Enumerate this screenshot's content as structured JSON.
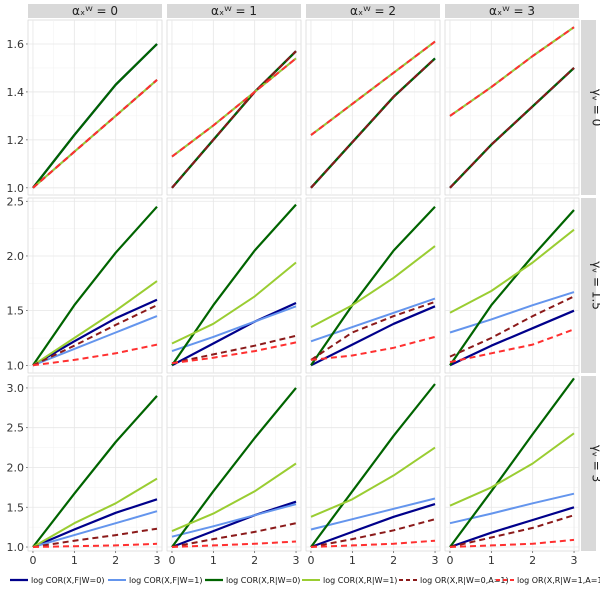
{
  "chart_data": {
    "type": "line",
    "x": [
      0,
      1,
      2,
      3
    ],
    "xticks": [
      "0",
      "1",
      "2",
      "3"
    ],
    "column_labels": [
      "αₓᵂ = 0",
      "αₓᵂ = 1",
      "αₓᵂ = 2",
      "αₓᵂ = 3"
    ],
    "row_labels": [
      "γᵥ = 0",
      "γᵥ = 1.5",
      "γᵥ = 3"
    ],
    "row_yticks": [
      {
        "ylim": [
          0.97,
          1.7
        ],
        "ticks": [
          1.0,
          1.2,
          1.4,
          1.6
        ],
        "labels": [
          "1.0",
          "1.2",
          "1.4",
          "1.6"
        ]
      },
      {
        "ylim": [
          0.93,
          2.53
        ],
        "ticks": [
          1.0,
          1.5,
          2.0,
          2.5
        ],
        "labels": [
          "1.0",
          "1.5",
          "2.0",
          "2.5"
        ]
      },
      {
        "ylim": [
          0.95,
          3.15
        ],
        "ticks": [
          1.0,
          1.5,
          2.0,
          2.5,
          3.0
        ],
        "labels": [
          "1.0",
          "1.5",
          "2.0",
          "2.5",
          "3.0"
        ]
      }
    ],
    "series_styles": [
      {
        "name": "log COR(X,F|W=0)",
        "color": "#00008b",
        "dash": "",
        "width": 2.2
      },
      {
        "name": "log COR(X,F|W=1)",
        "color": "#6495ed",
        "dash": "",
        "width": 2.0
      },
      {
        "name": "log COR(X,R|W=0)",
        "color": "#006400",
        "dash": "",
        "width": 2.2
      },
      {
        "name": "log COR(X,R|W=1)",
        "color": "#9acd32",
        "dash": "",
        "width": 2.0
      },
      {
        "name": "log OR(X,R|W=0,A=1)",
        "color": "#8b1a1a",
        "dash": "6,4",
        "width": 2.0
      },
      {
        "name": "log OR(X,R|W=1,A=1)",
        "color": "#ff3030",
        "dash": "6,4",
        "width": 2.0
      }
    ],
    "panels": [
      [
        {
          "series": [
            [
              1.0,
              1.22,
              1.43,
              1.6
            ],
            [
              1.0,
              1.15,
              1.3,
              1.45
            ],
            [
              1.0,
              1.22,
              1.43,
              1.6
            ],
            [
              1.0,
              1.15,
              1.3,
              1.45
            ],
            [
              1.0,
              1.15,
              1.3,
              1.45
            ],
            [
              1.0,
              1.15,
              1.3,
              1.45
            ]
          ]
        },
        {
          "series": [
            [
              1.0,
              1.2,
              1.4,
              1.57
            ],
            [
              1.13,
              1.26,
              1.4,
              1.54
            ],
            [
              1.0,
              1.2,
              1.4,
              1.57
            ],
            [
              1.13,
              1.26,
              1.4,
              1.54
            ],
            [
              1.0,
              1.2,
              1.4,
              1.57
            ],
            [
              1.13,
              1.26,
              1.4,
              1.54
            ]
          ]
        },
        {
          "series": [
            [
              1.0,
              1.19,
              1.38,
              1.54
            ],
            [
              1.22,
              1.35,
              1.48,
              1.61
            ],
            [
              1.0,
              1.19,
              1.38,
              1.54
            ],
            [
              1.22,
              1.35,
              1.48,
              1.61
            ],
            [
              1.0,
              1.19,
              1.38,
              1.54
            ],
            [
              1.22,
              1.35,
              1.48,
              1.61
            ]
          ]
        },
        {
          "series": [
            [
              1.0,
              1.18,
              1.34,
              1.5
            ],
            [
              1.3,
              1.42,
              1.55,
              1.67
            ],
            [
              1.0,
              1.18,
              1.34,
              1.5
            ],
            [
              1.3,
              1.42,
              1.55,
              1.67
            ],
            [
              1.0,
              1.18,
              1.34,
              1.5
            ],
            [
              1.3,
              1.42,
              1.55,
              1.67
            ]
          ]
        }
      ],
      [
        {
          "series": [
            [
              1.0,
              1.22,
              1.43,
              1.6
            ],
            [
              1.0,
              1.15,
              1.3,
              1.45
            ],
            [
              1.0,
              1.55,
              2.03,
              2.45
            ],
            [
              1.0,
              1.25,
              1.5,
              1.77
            ],
            [
              1.0,
              1.18,
              1.37,
              1.55
            ],
            [
              1.0,
              1.05,
              1.11,
              1.19
            ]
          ]
        },
        {
          "series": [
            [
              1.0,
              1.2,
              1.4,
              1.57
            ],
            [
              1.13,
              1.26,
              1.4,
              1.54
            ],
            [
              1.0,
              1.55,
              2.05,
              2.47
            ],
            [
              1.2,
              1.38,
              1.63,
              1.94
            ],
            [
              1.02,
              1.1,
              1.18,
              1.27
            ],
            [
              1.02,
              1.07,
              1.13,
              1.21
            ]
          ]
        },
        {
          "series": [
            [
              1.0,
              1.19,
              1.38,
              1.54
            ],
            [
              1.22,
              1.35,
              1.48,
              1.61
            ],
            [
              1.0,
              1.55,
              2.05,
              2.45
            ],
            [
              1.35,
              1.55,
              1.8,
              2.09
            ],
            [
              1.05,
              1.3,
              1.45,
              1.58
            ],
            [
              1.05,
              1.09,
              1.16,
              1.26
            ]
          ]
        },
        {
          "series": [
            [
              1.0,
              1.18,
              1.34,
              1.5
            ],
            [
              1.3,
              1.42,
              1.55,
              1.67
            ],
            [
              1.0,
              1.55,
              2.0,
              2.42
            ],
            [
              1.48,
              1.68,
              1.94,
              2.24
            ],
            [
              1.08,
              1.25,
              1.45,
              1.63
            ],
            [
              1.03,
              1.11,
              1.19,
              1.33
            ]
          ]
        }
      ],
      [
        {
          "series": [
            [
              1.0,
              1.22,
              1.43,
              1.6
            ],
            [
              1.0,
              1.15,
              1.3,
              1.45
            ],
            [
              1.0,
              1.67,
              2.32,
              2.9
            ],
            [
              1.0,
              1.3,
              1.55,
              1.86
            ],
            [
              1.0,
              1.08,
              1.15,
              1.23
            ],
            [
              1.0,
              1.01,
              1.02,
              1.04
            ]
          ]
        },
        {
          "series": [
            [
              1.0,
              1.2,
              1.4,
              1.57
            ],
            [
              1.13,
              1.26,
              1.4,
              1.54
            ],
            [
              1.0,
              1.7,
              2.37,
              3.0
            ],
            [
              1.2,
              1.42,
              1.7,
              2.05
            ],
            [
              1.0,
              1.1,
              1.19,
              1.3
            ],
            [
              1.0,
              1.02,
              1.04,
              1.07
            ]
          ]
        },
        {
          "series": [
            [
              1.0,
              1.19,
              1.38,
              1.54
            ],
            [
              1.22,
              1.35,
              1.48,
              1.61
            ],
            [
              1.0,
              1.7,
              2.4,
              3.05
            ],
            [
              1.38,
              1.6,
              1.9,
              2.25
            ],
            [
              1.0,
              1.1,
              1.21,
              1.35
            ],
            [
              1.0,
              1.02,
              1.04,
              1.08
            ]
          ]
        },
        {
          "series": [
            [
              1.0,
              1.18,
              1.34,
              1.5
            ],
            [
              1.3,
              1.42,
              1.55,
              1.67
            ],
            [
              1.0,
              1.7,
              2.42,
              3.12
            ],
            [
              1.52,
              1.75,
              2.05,
              2.43
            ],
            [
              1.0,
              1.12,
              1.24,
              1.4
            ],
            [
              1.0,
              1.02,
              1.04,
              1.09
            ]
          ]
        }
      ]
    ]
  }
}
